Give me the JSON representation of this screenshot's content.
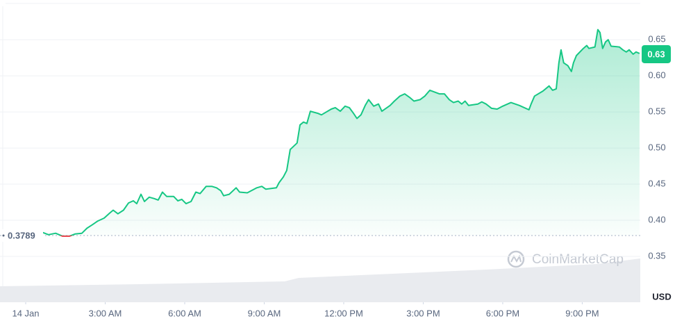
{
  "chart_data": {
    "type": "line",
    "color": "#16c784",
    "down_color": "#ea3943",
    "grid": true,
    "x": [
      0.65,
      0.86,
      1.13,
      1.39,
      1.65,
      1.86,
      2.12,
      2.31,
      2.52,
      2.72,
      2.96,
      3.17,
      3.3,
      3.48,
      3.69,
      3.88,
      4.06,
      4.19,
      4.35,
      4.48,
      4.66,
      4.85,
      5.0,
      5.16,
      5.32,
      5.58,
      5.74,
      5.89,
      6.05,
      6.24,
      6.42,
      6.58,
      6.81,
      7.02,
      7.2,
      7.36,
      7.47,
      7.68,
      7.94,
      8.07,
      8.36,
      8.72,
      8.91,
      9.06,
      9.46,
      9.56,
      9.72,
      9.85,
      9.98,
      10.24,
      10.35,
      10.48,
      10.61,
      10.74,
      11.03,
      11.16,
      11.53,
      11.68,
      11.87,
      12.05,
      12.21,
      12.37,
      12.5,
      12.65,
      12.81,
      12.94,
      13.13,
      13.31,
      13.44,
      13.75,
      13.91,
      14.12,
      14.3,
      14.49,
      14.65,
      14.88,
      15.06,
      15.25,
      15.61,
      15.8,
      15.98,
      16.14,
      16.32,
      16.45,
      16.58,
      16.71,
      17.06,
      17.21,
      17.37,
      17.58,
      17.79,
      18.0,
      18.31,
      18.63,
      18.99,
      19.07,
      19.2,
      19.52,
      19.75,
      19.88,
      20.02,
      20.12,
      20.2,
      20.3,
      20.46,
      20.59,
      20.67,
      20.78,
      21.04,
      21.17,
      21.25,
      21.48,
      21.59,
      21.67,
      21.77,
      21.88,
      21.98,
      22.09,
      22.4,
      22.53,
      22.66,
      22.77,
      22.92,
      23.03,
      23.16
    ],
    "values": [
      0.383,
      0.38,
      0.382,
      0.378,
      0.378,
      0.381,
      0.382,
      0.389,
      0.394,
      0.399,
      0.403,
      0.41,
      0.414,
      0.409,
      0.414,
      0.424,
      0.427,
      0.423,
      0.436,
      0.426,
      0.432,
      0.43,
      0.428,
      0.439,
      0.433,
      0.433,
      0.427,
      0.429,
      0.423,
      0.426,
      0.439,
      0.437,
      0.447,
      0.447,
      0.445,
      0.441,
      0.434,
      0.436,
      0.445,
      0.439,
      0.438,
      0.445,
      0.447,
      0.443,
      0.445,
      0.452,
      0.46,
      0.469,
      0.498,
      0.507,
      0.532,
      0.536,
      0.534,
      0.551,
      0.548,
      0.546,
      0.554,
      0.556,
      0.551,
      0.558,
      0.556,
      0.548,
      0.541,
      0.546,
      0.559,
      0.567,
      0.558,
      0.561,
      0.551,
      0.559,
      0.565,
      0.572,
      0.575,
      0.57,
      0.565,
      0.567,
      0.572,
      0.58,
      0.575,
      0.575,
      0.567,
      0.563,
      0.565,
      0.561,
      0.565,
      0.559,
      0.561,
      0.564,
      0.561,
      0.555,
      0.554,
      0.558,
      0.563,
      0.559,
      0.553,
      0.561,
      0.572,
      0.579,
      0.586,
      0.58,
      0.582,
      0.618,
      0.636,
      0.618,
      0.614,
      0.606,
      0.618,
      0.628,
      0.638,
      0.642,
      0.638,
      0.64,
      0.664,
      0.66,
      0.638,
      0.647,
      0.65,
      0.641,
      0.64,
      0.636,
      0.633,
      0.636,
      0.63,
      0.633,
      0.631
    ],
    "xlim": [
      -0.97,
      23.19
    ],
    "ylim": [
      0.2865,
      0.7002
    ],
    "xticks": [
      {
        "value": 0,
        "label": "14 Jan"
      },
      {
        "value": 3,
        "label": "3:00 AM"
      },
      {
        "value": 6,
        "label": "6:00 AM"
      },
      {
        "value": 9,
        "label": "9:00 AM"
      },
      {
        "value": 12,
        "label": "12:00 PM"
      },
      {
        "value": 15,
        "label": "3:00 PM"
      },
      {
        "value": 18,
        "label": "6:00 PM"
      },
      {
        "value": 21,
        "label": "9:00 PM"
      }
    ],
    "yticks": [
      0.35,
      {
        "value": 0.4,
        "label": "0.40"
      },
      0.45,
      {
        "value": 0.5,
        "label": "0.50"
      },
      0.55,
      {
        "value": 0.6,
        "label": "0.60"
      },
      0.65
    ],
    "baseline": 0.3789,
    "current_price": 0.63,
    "unit_label": "USD",
    "watermark": "CoinMarketCap"
  }
}
